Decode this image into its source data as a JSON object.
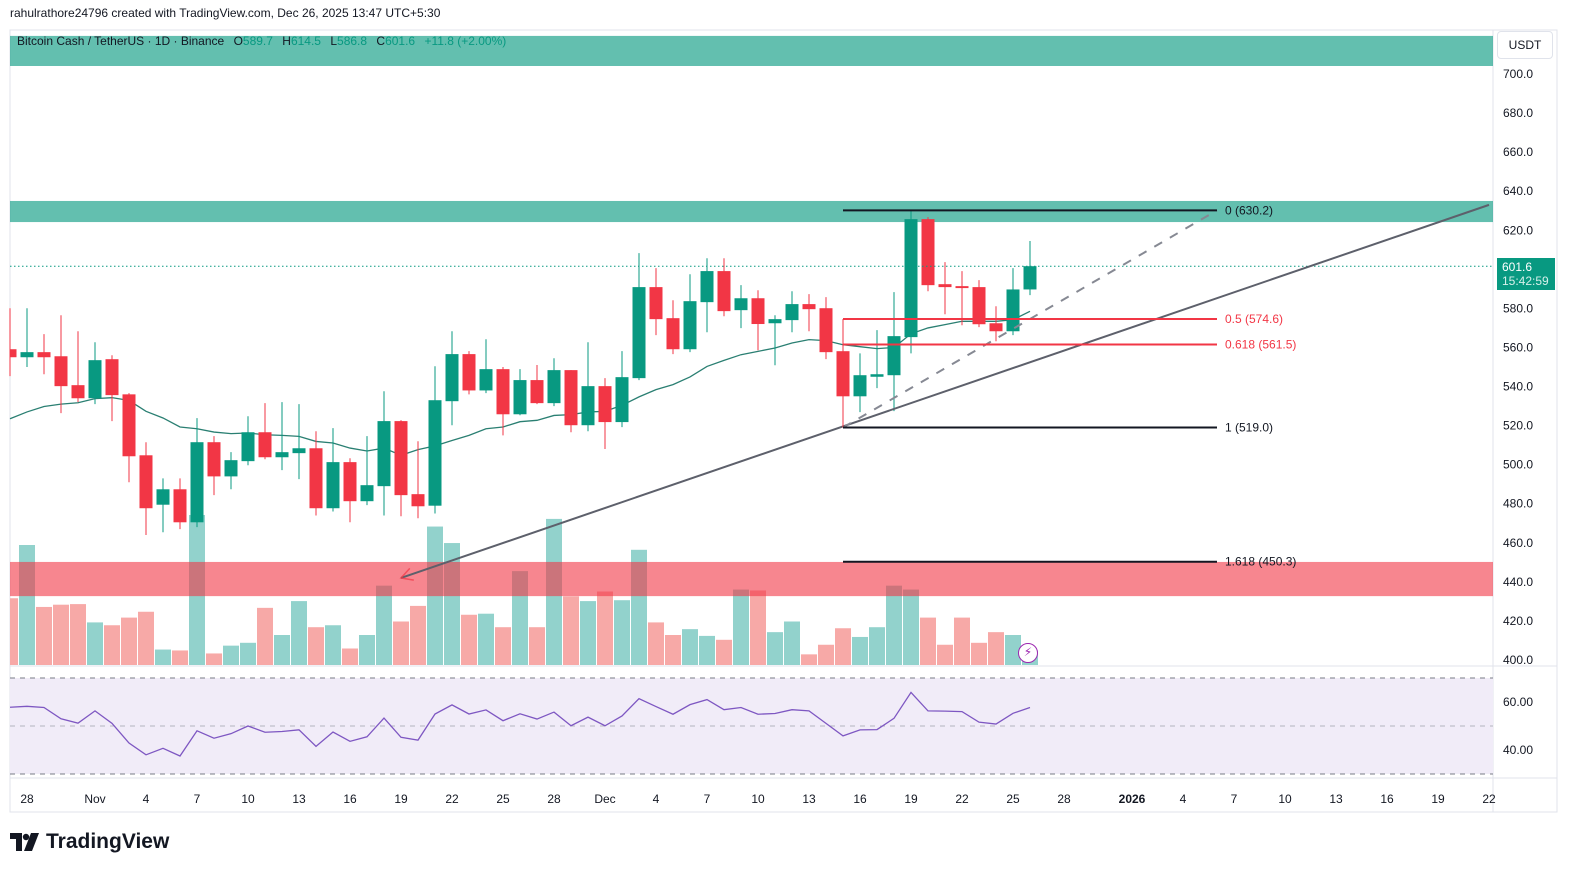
{
  "credit": "rahulrathore24796 created with TradingView.com, Dec 26, 2025 13:47 UTC+5:30",
  "legend": {
    "symbol": "Bitcoin Cash / TetherUS · 1D · Binance",
    "o_label": "O",
    "o": "589.7",
    "h_label": "H",
    "h": "614.5",
    "l_label": "L",
    "l": "586.8",
    "c_label": "C",
    "c": "601.6",
    "change": "+11.8 (+2.00%)"
  },
  "price_axis": {
    "unit": "USDT",
    "ticks": [
      "700.0",
      "680.0",
      "660.0",
      "640.0",
      "620.0",
      "600.0",
      "580.0",
      "560.0",
      "540.0",
      "520.0",
      "500.0",
      "480.0",
      "460.0",
      "440.0",
      "420.0",
      "400.0"
    ],
    "current_price": "601.6",
    "countdown": "15:42:59"
  },
  "rsi_axis": {
    "ticks": [
      "60.00",
      "40.00"
    ]
  },
  "time_axis": {
    "ticks": [
      {
        "label": "28",
        "date": "2025-10-28"
      },
      {
        "label": "Nov",
        "date": "2025-11-01"
      },
      {
        "label": "4",
        "date": "2025-11-04"
      },
      {
        "label": "7",
        "date": "2025-11-07"
      },
      {
        "label": "10",
        "date": "2025-11-10"
      },
      {
        "label": "13",
        "date": "2025-11-13"
      },
      {
        "label": "16",
        "date": "2025-11-16"
      },
      {
        "label": "19",
        "date": "2025-11-19"
      },
      {
        "label": "22",
        "date": "2025-11-22"
      },
      {
        "label": "25",
        "date": "2025-11-25"
      },
      {
        "label": "28",
        "date": "2025-11-28"
      },
      {
        "label": "Dec",
        "date": "2025-12-01"
      },
      {
        "label": "4",
        "date": "2025-12-04"
      },
      {
        "label": "7",
        "date": "2025-12-07"
      },
      {
        "label": "10",
        "date": "2025-12-10"
      },
      {
        "label": "13",
        "date": "2025-12-13"
      },
      {
        "label": "16",
        "date": "2025-12-16"
      },
      {
        "label": "19",
        "date": "2025-12-19"
      },
      {
        "label": "22",
        "date": "2025-12-22"
      },
      {
        "label": "25",
        "date": "2025-12-25"
      },
      {
        "label": "28",
        "date": "2025-12-28"
      },
      {
        "label": "2026",
        "date": "2026-01-01",
        "bold": true
      },
      {
        "label": "4",
        "date": "2026-01-04"
      },
      {
        "label": "7",
        "date": "2026-01-07"
      },
      {
        "label": "10",
        "date": "2026-01-10"
      },
      {
        "label": "13",
        "date": "2026-01-13"
      },
      {
        "label": "16",
        "date": "2026-01-16"
      },
      {
        "label": "19",
        "date": "2026-01-19"
      },
      {
        "label": "22",
        "date": "2026-01-22"
      }
    ]
  },
  "colors": {
    "up": "#089981",
    "down": "#f23645",
    "vol_up": "#92d2cc",
    "vol_down": "#f7a9a7",
    "ma": "#2a7f72",
    "rsi": "#7e57c2",
    "rsi_bg": "#f1ecf8",
    "zone_green": "#089981",
    "zone_red": "#f23645",
    "trend": "#5d606b"
  },
  "chart_data": {
    "type": "candlestick",
    "ylim": [
      400,
      700
    ],
    "rsi_ylim": [
      30,
      70
    ],
    "candles_fields": [
      "date",
      "open",
      "high",
      "low",
      "close"
    ],
    "candles": [
      [
        "2025-10-27",
        559.1,
        580.1,
        545.3,
        555.0
      ],
      [
        "2025-10-28",
        555.0,
        580.1,
        550.0,
        557.6
      ],
      [
        "2025-10-29",
        557.6,
        566.8,
        546.3,
        555.0
      ],
      [
        "2025-10-30",
        555.5,
        576.5,
        526.4,
        540.2
      ],
      [
        "2025-10-31",
        540.7,
        568.3,
        532.0,
        534.0
      ],
      [
        "2025-11-01",
        534.0,
        562.7,
        531.0,
        553.5
      ],
      [
        "2025-11-02",
        554.0,
        556.0,
        522.3,
        535.6
      ],
      [
        "2025-11-03",
        536.0,
        536.6,
        491.0,
        504.3
      ],
      [
        "2025-11-04",
        504.8,
        511.5,
        464.0,
        477.7
      ],
      [
        "2025-11-05",
        479.5,
        493.0,
        465.4,
        487.4
      ],
      [
        "2025-11-06",
        487.4,
        493.0,
        467.0,
        470.5
      ],
      [
        "2025-11-07",
        470.5,
        523.8,
        468.0,
        511.5
      ],
      [
        "2025-11-08",
        511.5,
        514.6,
        484.4,
        494.0
      ],
      [
        "2025-11-09",
        494.0,
        506.4,
        487.4,
        502.3
      ],
      [
        "2025-11-10",
        501.8,
        524.8,
        499.7,
        516.6
      ],
      [
        "2025-11-11",
        516.6,
        531.5,
        502.8,
        503.8
      ],
      [
        "2025-11-12",
        503.8,
        532.0,
        497.2,
        506.4
      ],
      [
        "2025-11-13",
        505.9,
        531.0,
        492.6,
        508.4
      ],
      [
        "2025-11-14",
        508.4,
        517.1,
        474.0,
        477.7
      ],
      [
        "2025-11-15",
        477.7,
        518.7,
        476.0,
        501.3
      ],
      [
        "2025-11-16",
        501.3,
        503.3,
        470.5,
        481.3
      ],
      [
        "2025-11-17",
        481.3,
        514.6,
        479.3,
        489.5
      ],
      [
        "2025-11-18",
        489.0,
        537.6,
        474.0,
        522.3
      ],
      [
        "2025-11-19",
        522.3,
        522.8,
        473.6,
        484.4
      ],
      [
        "2025-11-20",
        484.9,
        512.0,
        472.6,
        478.7
      ],
      [
        "2025-11-21",
        479.0,
        550.4,
        475.0,
        533.0
      ],
      [
        "2025-11-22",
        532.5,
        568.3,
        520.2,
        556.6
      ],
      [
        "2025-11-23",
        556.6,
        558.1,
        536.0,
        538.0
      ],
      [
        "2025-11-24",
        538.0,
        564.2,
        536.6,
        548.9
      ],
      [
        "2025-11-25",
        548.9,
        550.0,
        515.0,
        525.8
      ],
      [
        "2025-11-26",
        525.8,
        548.9,
        525.3,
        543.3
      ],
      [
        "2025-11-27",
        543.3,
        551.0,
        531.0,
        531.5
      ],
      [
        "2025-11-28",
        531.5,
        554.5,
        530.0,
        548.4
      ],
      [
        "2025-11-29",
        548.4,
        548.4,
        516.6,
        520.2
      ],
      [
        "2025-11-30",
        520.2,
        562.7,
        517.1,
        540.2
      ],
      [
        "2025-12-01",
        540.2,
        544.3,
        508.0,
        521.8
      ],
      [
        "2025-12-02",
        521.8,
        558.1,
        519.2,
        544.8
      ],
      [
        "2025-12-03",
        544.3,
        608.3,
        543.3,
        590.9
      ],
      [
        "2025-12-04",
        590.9,
        600.6,
        566.3,
        574.5
      ],
      [
        "2025-12-05",
        575.0,
        584.2,
        556.6,
        559.1
      ],
      [
        "2025-12-06",
        559.1,
        597.5,
        557.6,
        583.7
      ],
      [
        "2025-12-07",
        583.2,
        605.7,
        567.8,
        599.1
      ],
      [
        "2025-12-08",
        599.1,
        605.7,
        576.0,
        578.6
      ],
      [
        "2025-12-09",
        579.1,
        591.9,
        569.9,
        585.2
      ],
      [
        "2025-12-10",
        585.2,
        589.3,
        558.6,
        572.0
      ],
      [
        "2025-12-11",
        572.4,
        576.5,
        550.9,
        574.5
      ],
      [
        "2025-12-12",
        574.0,
        588.8,
        567.8,
        582.2
      ],
      [
        "2025-12-13",
        582.2,
        587.3,
        568.3,
        579.6
      ],
      [
        "2025-12-14",
        580.1,
        585.8,
        554.0,
        557.6
      ],
      [
        "2025-12-15",
        558.1,
        574.5,
        519.0,
        535.0
      ],
      [
        "2025-12-16",
        535.0,
        557.0,
        526.9,
        545.8
      ],
      [
        "2025-12-17",
        545.0,
        568.9,
        539.2,
        546.3
      ],
      [
        "2025-12-18",
        545.8,
        588.3,
        527.4,
        565.8
      ],
      [
        "2025-12-19",
        565.3,
        630.2,
        557.0,
        625.7
      ],
      [
        "2025-12-20",
        625.7,
        626.7,
        588.8,
        591.9
      ],
      [
        "2025-12-21",
        592.4,
        603.7,
        577.0,
        590.9
      ],
      [
        "2025-12-22",
        591.4,
        599.1,
        571.4,
        590.4
      ],
      [
        "2025-12-23",
        590.9,
        594.5,
        570.4,
        571.9
      ],
      [
        "2025-12-24",
        572.4,
        581.1,
        563.2,
        568.3
      ],
      [
        "2025-12-25",
        568.3,
        600.6,
        566.3,
        589.7
      ],
      [
        "2025-12-26",
        589.7,
        614.5,
        586.8,
        601.6
      ]
    ],
    "volume_relative": [
      44.5,
      80,
      38.7,
      40.2,
      40.6,
      28.4,
      26.5,
      31.6,
      35.5,
      10.3,
      9.7,
      100,
      7.7,
      12.9,
      14.8,
      38.1,
      20,
      42.6,
      25.2,
      26.5,
      11,
      20,
      52.9,
      29,
      39.4,
      92.3,
      81.3,
      33.5,
      34.2,
      25.2,
      62.6,
      25.2,
      97.4,
      45.8,
      42.6,
      49,
      43.2,
      76.8,
      28.4,
      20,
      23.9,
      19.4,
      16.8,
      50.3,
      49.7,
      21.9,
      29,
      7.1,
      13.5,
      24.5,
      18.7,
      25.2,
      52.9,
      50.3,
      31.6,
      13.5,
      31.6,
      14.8,
      21.9,
      20,
      9.7
    ],
    "moving_average": [
      523.5,
      527,
      529.8,
      531,
      531.7,
      533.8,
      534.3,
      532.9,
      527.3,
      523.9,
      519.3,
      518.4,
      516.7,
      515.9,
      516.2,
      515.3,
      515,
      514.5,
      511.9,
      511.1,
      508.5,
      507,
      508.5,
      504.8,
      507.7,
      509.6,
      512.4,
      515,
      518.4,
      519.3,
      522,
      522.7,
      525.2,
      525.6,
      527,
      527.3,
      530.4,
      534.7,
      538.4,
      541,
      544.9,
      550.3,
      553.4,
      556.3,
      558,
      559.7,
      562.3,
      564,
      563.5,
      561.4,
      560.4,
      559.4,
      560,
      567,
      570,
      571.7,
      573.4,
      573.4,
      573.4,
      574.2,
      578.5
    ],
    "rsi": [
      57.8,
      58.2,
      57.7,
      53.0,
      51.2,
      56.3,
      51.1,
      42.9,
      38.0,
      40.7,
      37.5,
      48.0,
      44.9,
      46.8,
      50.0,
      47.4,
      47.7,
      48.4,
      41.5,
      47.5,
      43.6,
      45.5,
      53.3,
      45.3,
      44.1,
      55.0,
      58.8,
      55.0,
      56.7,
      52.2,
      55.1,
      52.9,
      55.8,
      50.1,
      53.7,
      50.1,
      54.2,
      61.4,
      58.1,
      54.9,
      58.9,
      61.0,
      56.8,
      57.7,
      54.9,
      55.2,
      56.8,
      56.3,
      51.1,
      45.9,
      48.4,
      48.5,
      53.2,
      64.0,
      56.3,
      56.2,
      56.0,
      51.6,
      50.8,
      55.3,
      57.7
    ],
    "zones": [
      {
        "kind": "resistance",
        "color": "green",
        "top": 719.5,
        "bottom": 704.1
      },
      {
        "kind": "resistance",
        "color": "green",
        "top": 635.0,
        "bottom": 624.2
      },
      {
        "kind": "support",
        "color": "red",
        "top": 450.2,
        "bottom": 432.7
      }
    ],
    "trendlines": [
      {
        "style": "solid",
        "arrow": "start",
        "from": {
          "date": "2025-11-19",
          "price": 442.0
        },
        "to": {
          "date": "2026-01-22",
          "price": 633.0
        }
      },
      {
        "style": "dashed",
        "from": {
          "date": "2025-12-15",
          "price": 519.0
        },
        "to": {
          "date": "2026-01-06",
          "price": 630.2
        }
      }
    ],
    "fibonacci": {
      "from_date": "2025-12-15",
      "to_date": "2026-01-06",
      "levels": [
        {
          "ratio": "0",
          "price": 630.2,
          "label": "0 (630.2)",
          "color": "#131722"
        },
        {
          "ratio": "0.5",
          "price": 574.6,
          "label": "0.5 (574.6)",
          "color": "#f23645"
        },
        {
          "ratio": "0.618",
          "price": 561.5,
          "label": "0.618 (561.5)",
          "color": "#f23645"
        },
        {
          "ratio": "1",
          "price": 519.0,
          "label": "1 (519.0)",
          "color": "#131722"
        },
        {
          "ratio": "1.618",
          "price": 450.3,
          "label": "1.618 (450.3)",
          "color": "#131722"
        }
      ]
    }
  },
  "footer": {
    "brand": "TradingView"
  },
  "icons": {
    "alert": "lightning-icon",
    "logo": "tradingview-logo"
  }
}
